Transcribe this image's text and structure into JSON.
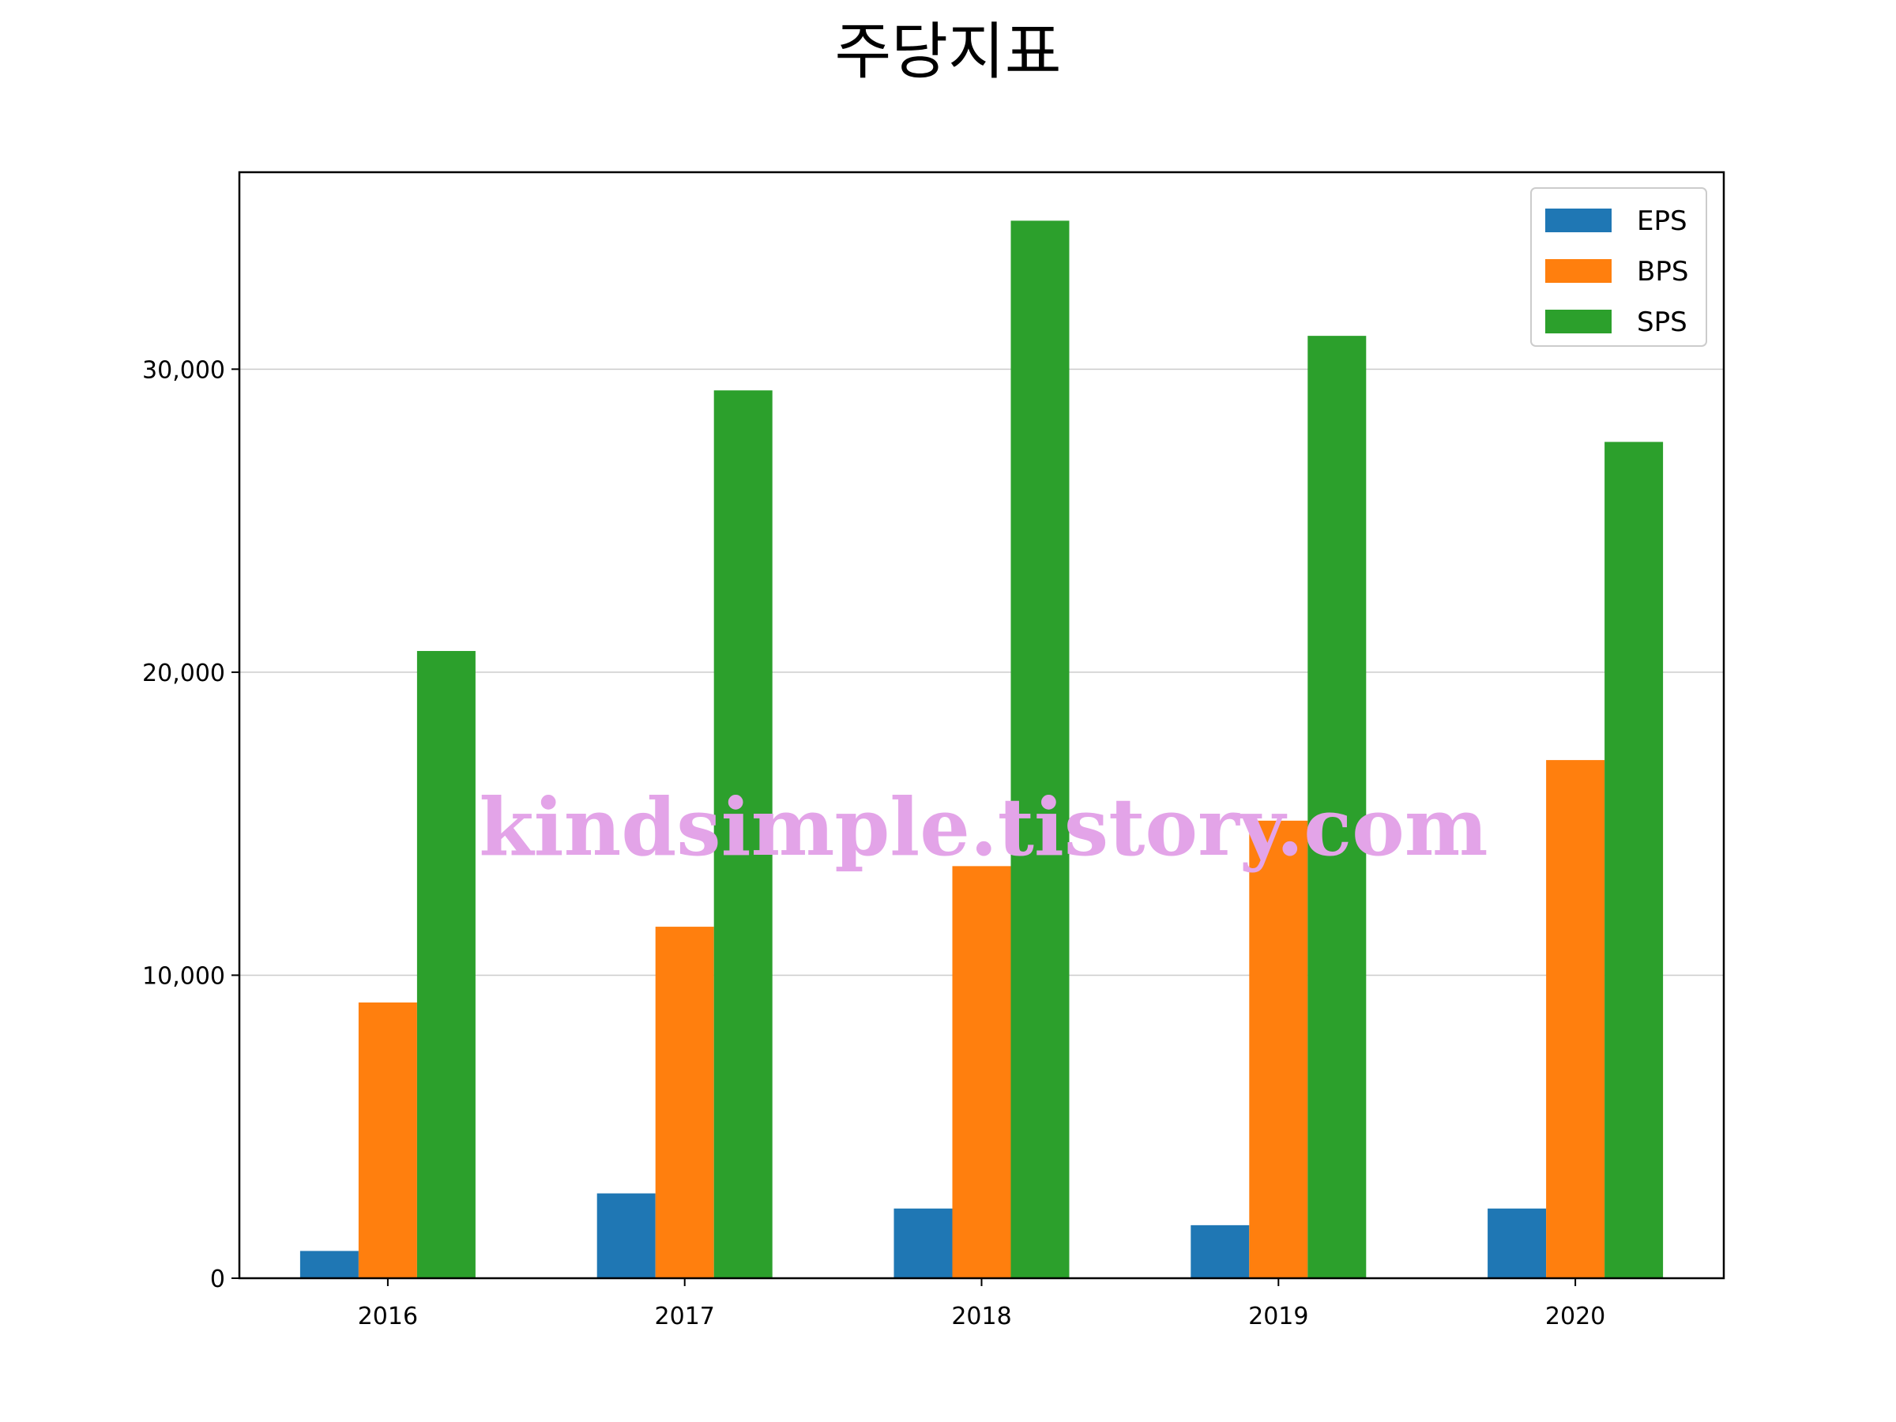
{
  "chart_data": {
    "type": "bar",
    "title": "주당지표",
    "xlabel": "",
    "ylabel": "",
    "categories": [
      "2016",
      "2017",
      "2018",
      "2019",
      "2020"
    ],
    "series": [
      {
        "name": "EPS",
        "color": "#1f77b4",
        "values": [
          900,
          2800,
          2300,
          1750,
          2300
        ]
      },
      {
        "name": "BPS",
        "color": "#ff7f0e",
        "values": [
          9100,
          11600,
          13600,
          15100,
          17100
        ]
      },
      {
        "name": "SPS",
        "color": "#2ca02c",
        "values": [
          20700,
          29300,
          34900,
          31100,
          27600
        ]
      }
    ],
    "ylim": [
      0,
      36500
    ],
    "yticks": [
      0,
      10000,
      20000,
      30000
    ],
    "ytick_labels": [
      "0",
      "10,000",
      "20,000",
      "30,000"
    ],
    "grid": "y",
    "legend_position": "top-right"
  },
  "watermark": "kindsimple.tistory.com"
}
